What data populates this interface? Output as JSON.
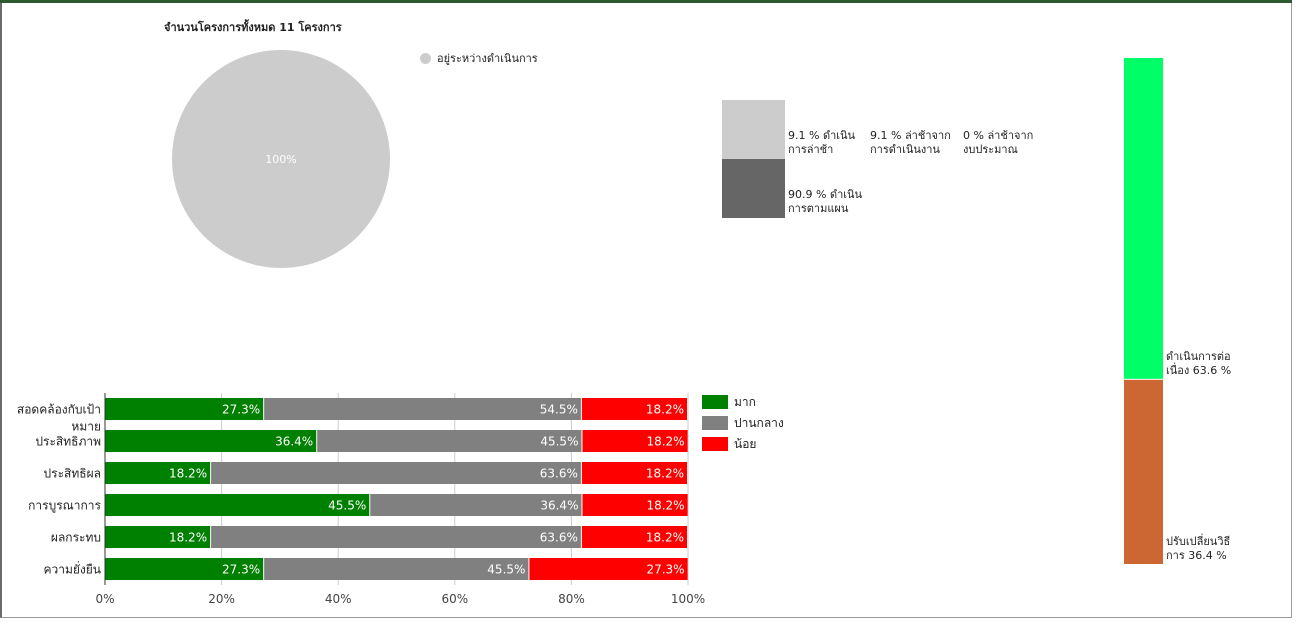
{
  "pie": {
    "title": "จำนวนโครงการทั้งหมด 11 โครงการ",
    "legend_label": "อยู่ระหว่างดำเนินการ",
    "slice_label": "100%",
    "color": "#cccccc"
  },
  "status_legend": {
    "items": [
      {
        "text": "9.1 % ดำเนินการล่าช้า",
        "line1": "9.1 % ดำเนิน",
        "line2": "การล่าช้า",
        "color": "#cccccc"
      },
      {
        "text": "9.1 % ล่าช้าจากการดำเนินงาน",
        "line1": "9.1 % ล่าช้าจาก",
        "line2": "การดำเนินงาน"
      },
      {
        "text": "0 % ล่าช้าจากงบประมาณ",
        "line1": "0 % ล่าช้าจาก",
        "line2": "งบประมาณ"
      },
      {
        "text": "90.9 % ดำเนินการตามแผน",
        "line1": "90.9 % ดำเนิน",
        "line2": "การตามแผน",
        "color": "#666666"
      }
    ]
  },
  "right_bar": {
    "segments": [
      {
        "line1": "ดำเนินการต่อ",
        "line2": "เนื่อง 63.6 %",
        "value": 63.6,
        "color": "#00ff66"
      },
      {
        "line1": "ปรับเปลี่ยนวิธี",
        "line2": "การ 36.4 %",
        "value": 36.4,
        "color": "#cc6633"
      }
    ]
  },
  "chart_data": {
    "type": "bar",
    "orientation": "horizontal",
    "stacked": "percent",
    "categories": [
      [
        "สอดคล้องกับเป้า",
        "หมาย"
      ],
      [
        "ประสิทธิภาพ"
      ],
      [
        "ประสิทธิผล"
      ],
      [
        "การบูรณาการ"
      ],
      [
        "ผลกระทบ"
      ],
      [
        "ความยั่งยืน"
      ]
    ],
    "series": [
      {
        "name": "มาก",
        "color": "#008000",
        "values": [
          27.3,
          36.4,
          18.2,
          45.5,
          18.2,
          27.3
        ]
      },
      {
        "name": "ปานกลาง",
        "color": "#808080",
        "values": [
          54.5,
          45.5,
          63.6,
          36.4,
          63.6,
          45.5
        ]
      },
      {
        "name": "น้อย",
        "color": "#ff0000",
        "values": [
          18.2,
          18.2,
          18.2,
          18.2,
          18.2,
          27.3
        ]
      }
    ],
    "x_ticks": [
      "0%",
      "20%",
      "40%",
      "60%",
      "80%",
      "100%"
    ],
    "xlim": [
      0,
      100
    ],
    "grid": true,
    "legend_position": "right"
  }
}
